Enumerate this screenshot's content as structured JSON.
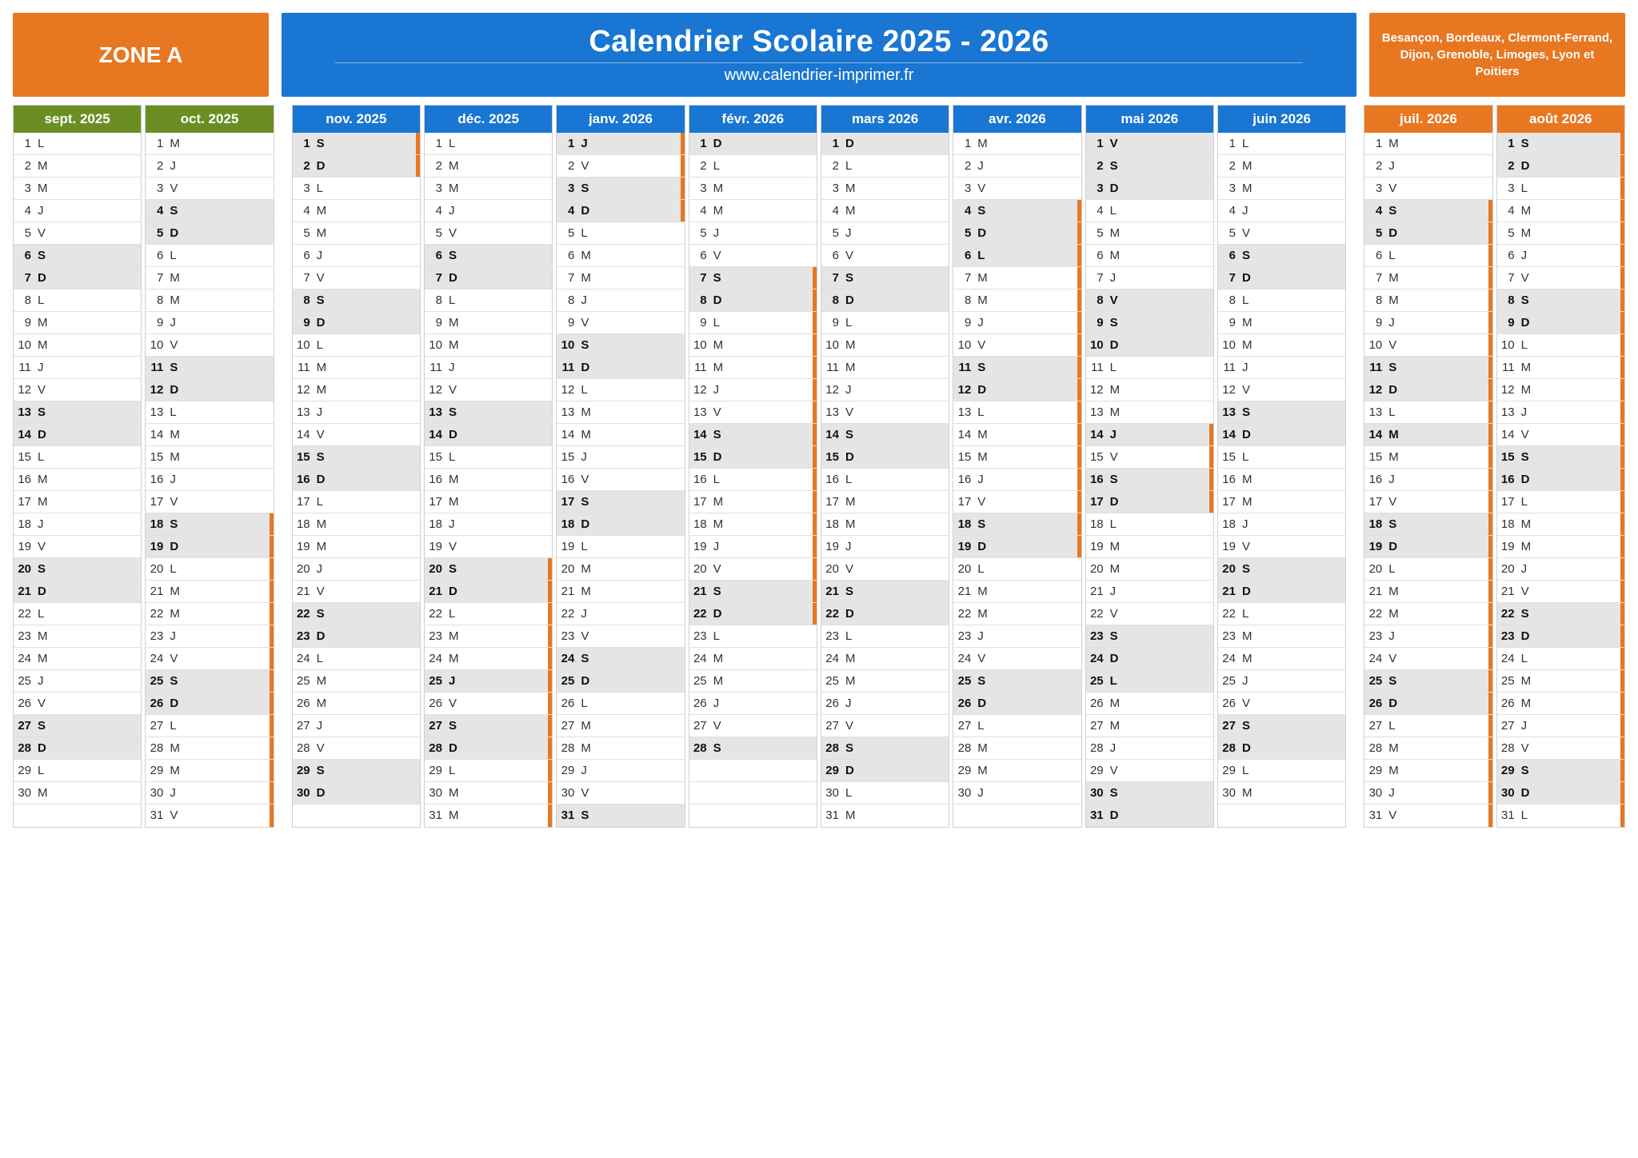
{
  "zone_label": "ZONE A",
  "title": "Calendrier Scolaire 2025 - 2026",
  "url": "www.calendrier-imprimer.fr",
  "cities": "Besançon, Bordeaux, Clermont-Ferrand, Dijon, Grenoble, Limoges, Lyon et Poitiers",
  "colors": {
    "orange": "#e87722",
    "blue": "#1976d2",
    "green": "#6b8e23",
    "weekend_bg": "#e5e5e5",
    "holiday_bg": "#d9d9d9",
    "border": "#d0d0d0",
    "marker": "#e87722"
  },
  "day_abbrs": [
    "L",
    "M",
    "M",
    "J",
    "V",
    "S",
    "D"
  ],
  "months": [
    {
      "label": "sept. 2025",
      "header_color": "green",
      "first_dow": 0,
      "ndays": 30,
      "vacation": [],
      "holidays": []
    },
    {
      "label": "oct. 2025",
      "header_color": "green",
      "first_dow": 2,
      "ndays": 31,
      "vacation": [
        [
          18,
          31
        ]
      ],
      "holidays": []
    },
    {
      "label": "nov. 2025",
      "header_color": "blue",
      "first_dow": 5,
      "ndays": 30,
      "vacation": [
        [
          1,
          2
        ]
      ],
      "holidays": [
        1
      ]
    },
    {
      "label": "déc. 2025",
      "header_color": "blue",
      "first_dow": 0,
      "ndays": 31,
      "vacation": [
        [
          20,
          31
        ]
      ],
      "holidays": [
        25
      ]
    },
    {
      "label": "janv. 2026",
      "header_color": "blue",
      "first_dow": 3,
      "ndays": 31,
      "vacation": [
        [
          1,
          4
        ]
      ],
      "holidays": [
        1
      ]
    },
    {
      "label": "févr. 2026",
      "header_color": "blue",
      "first_dow": 6,
      "ndays": 28,
      "vacation": [
        [
          7,
          22
        ]
      ],
      "holidays": []
    },
    {
      "label": "mars 2026",
      "header_color": "blue",
      "first_dow": 6,
      "ndays": 31,
      "vacation": [],
      "holidays": []
    },
    {
      "label": "avr. 2026",
      "header_color": "blue",
      "first_dow": 2,
      "ndays": 30,
      "vacation": [
        [
          4,
          19
        ]
      ],
      "holidays": [
        6
      ]
    },
    {
      "label": "mai 2026",
      "header_color": "blue",
      "first_dow": 4,
      "ndays": 31,
      "vacation": [
        [
          14,
          17
        ]
      ],
      "holidays": [
        1,
        8,
        14,
        25
      ]
    },
    {
      "label": "juin 2026",
      "header_color": "blue",
      "first_dow": 0,
      "ndays": 30,
      "vacation": [],
      "holidays": []
    },
    {
      "label": "juil. 2026",
      "header_color": "orange",
      "first_dow": 2,
      "ndays": 31,
      "vacation": [
        [
          4,
          31
        ]
      ],
      "holidays": [
        14
      ]
    },
    {
      "label": "août 2026",
      "header_color": "orange",
      "first_dow": 5,
      "ndays": 31,
      "vacation": [
        [
          1,
          31
        ]
      ],
      "holidays": [
        15
      ]
    }
  ],
  "groups": [
    [
      0,
      1
    ],
    [
      2,
      3,
      4,
      5,
      6,
      7,
      8,
      9
    ],
    [
      10,
      11
    ]
  ]
}
